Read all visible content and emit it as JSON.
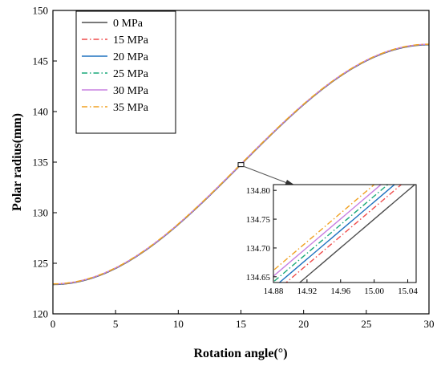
{
  "chart_data": {
    "type": "line",
    "xlabel": "Rotation angle(°)",
    "ylabel": "Polar radius(mm)",
    "xlim": [
      0,
      30
    ],
    "ylim": [
      120,
      150
    ],
    "xticks": [
      "0",
      "5",
      "10",
      "15",
      "20",
      "25",
      "30"
    ],
    "yticks": [
      "120",
      "125",
      "130",
      "135",
      "140",
      "145",
      "150"
    ],
    "grid": false,
    "legend_position": "top-left",
    "curve_model": {
      "center": 122.9,
      "amplitude": 11.85,
      "period_deg": 60
    },
    "series": [
      {
        "name": "0 MPa",
        "color": "#4d4d4d",
        "dash": "solid",
        "offset": 0.0
      },
      {
        "name": "15 MPa",
        "color": "#ef4c4c",
        "dash": "dashdot",
        "offset": 0.02
      },
      {
        "name": "20 MPa",
        "color": "#1f72bf",
        "dash": "solid",
        "offset": 0.03
      },
      {
        "name": "25 MPa",
        "color": "#19a87a",
        "dash": "dashdot",
        "offset": 0.04
      },
      {
        "name": "30 MPa",
        "color": "#c880e0",
        "dash": "solid",
        "offset": 0.05
      },
      {
        "name": "35 MPa",
        "color": "#f0a020",
        "dash": "dashdot",
        "offset": 0.06
      }
    ],
    "inset": {
      "xlim": [
        14.88,
        15.05
      ],
      "ylim": [
        134.64,
        134.81
      ],
      "xticks": [
        "14.88",
        "14.92",
        "14.96",
        "15.00",
        "15.04"
      ],
      "yticks": [
        "134.65",
        "134.70",
        "134.75",
        "134.80"
      ],
      "zoom_center": [
        15.0,
        134.75
      ]
    }
  }
}
